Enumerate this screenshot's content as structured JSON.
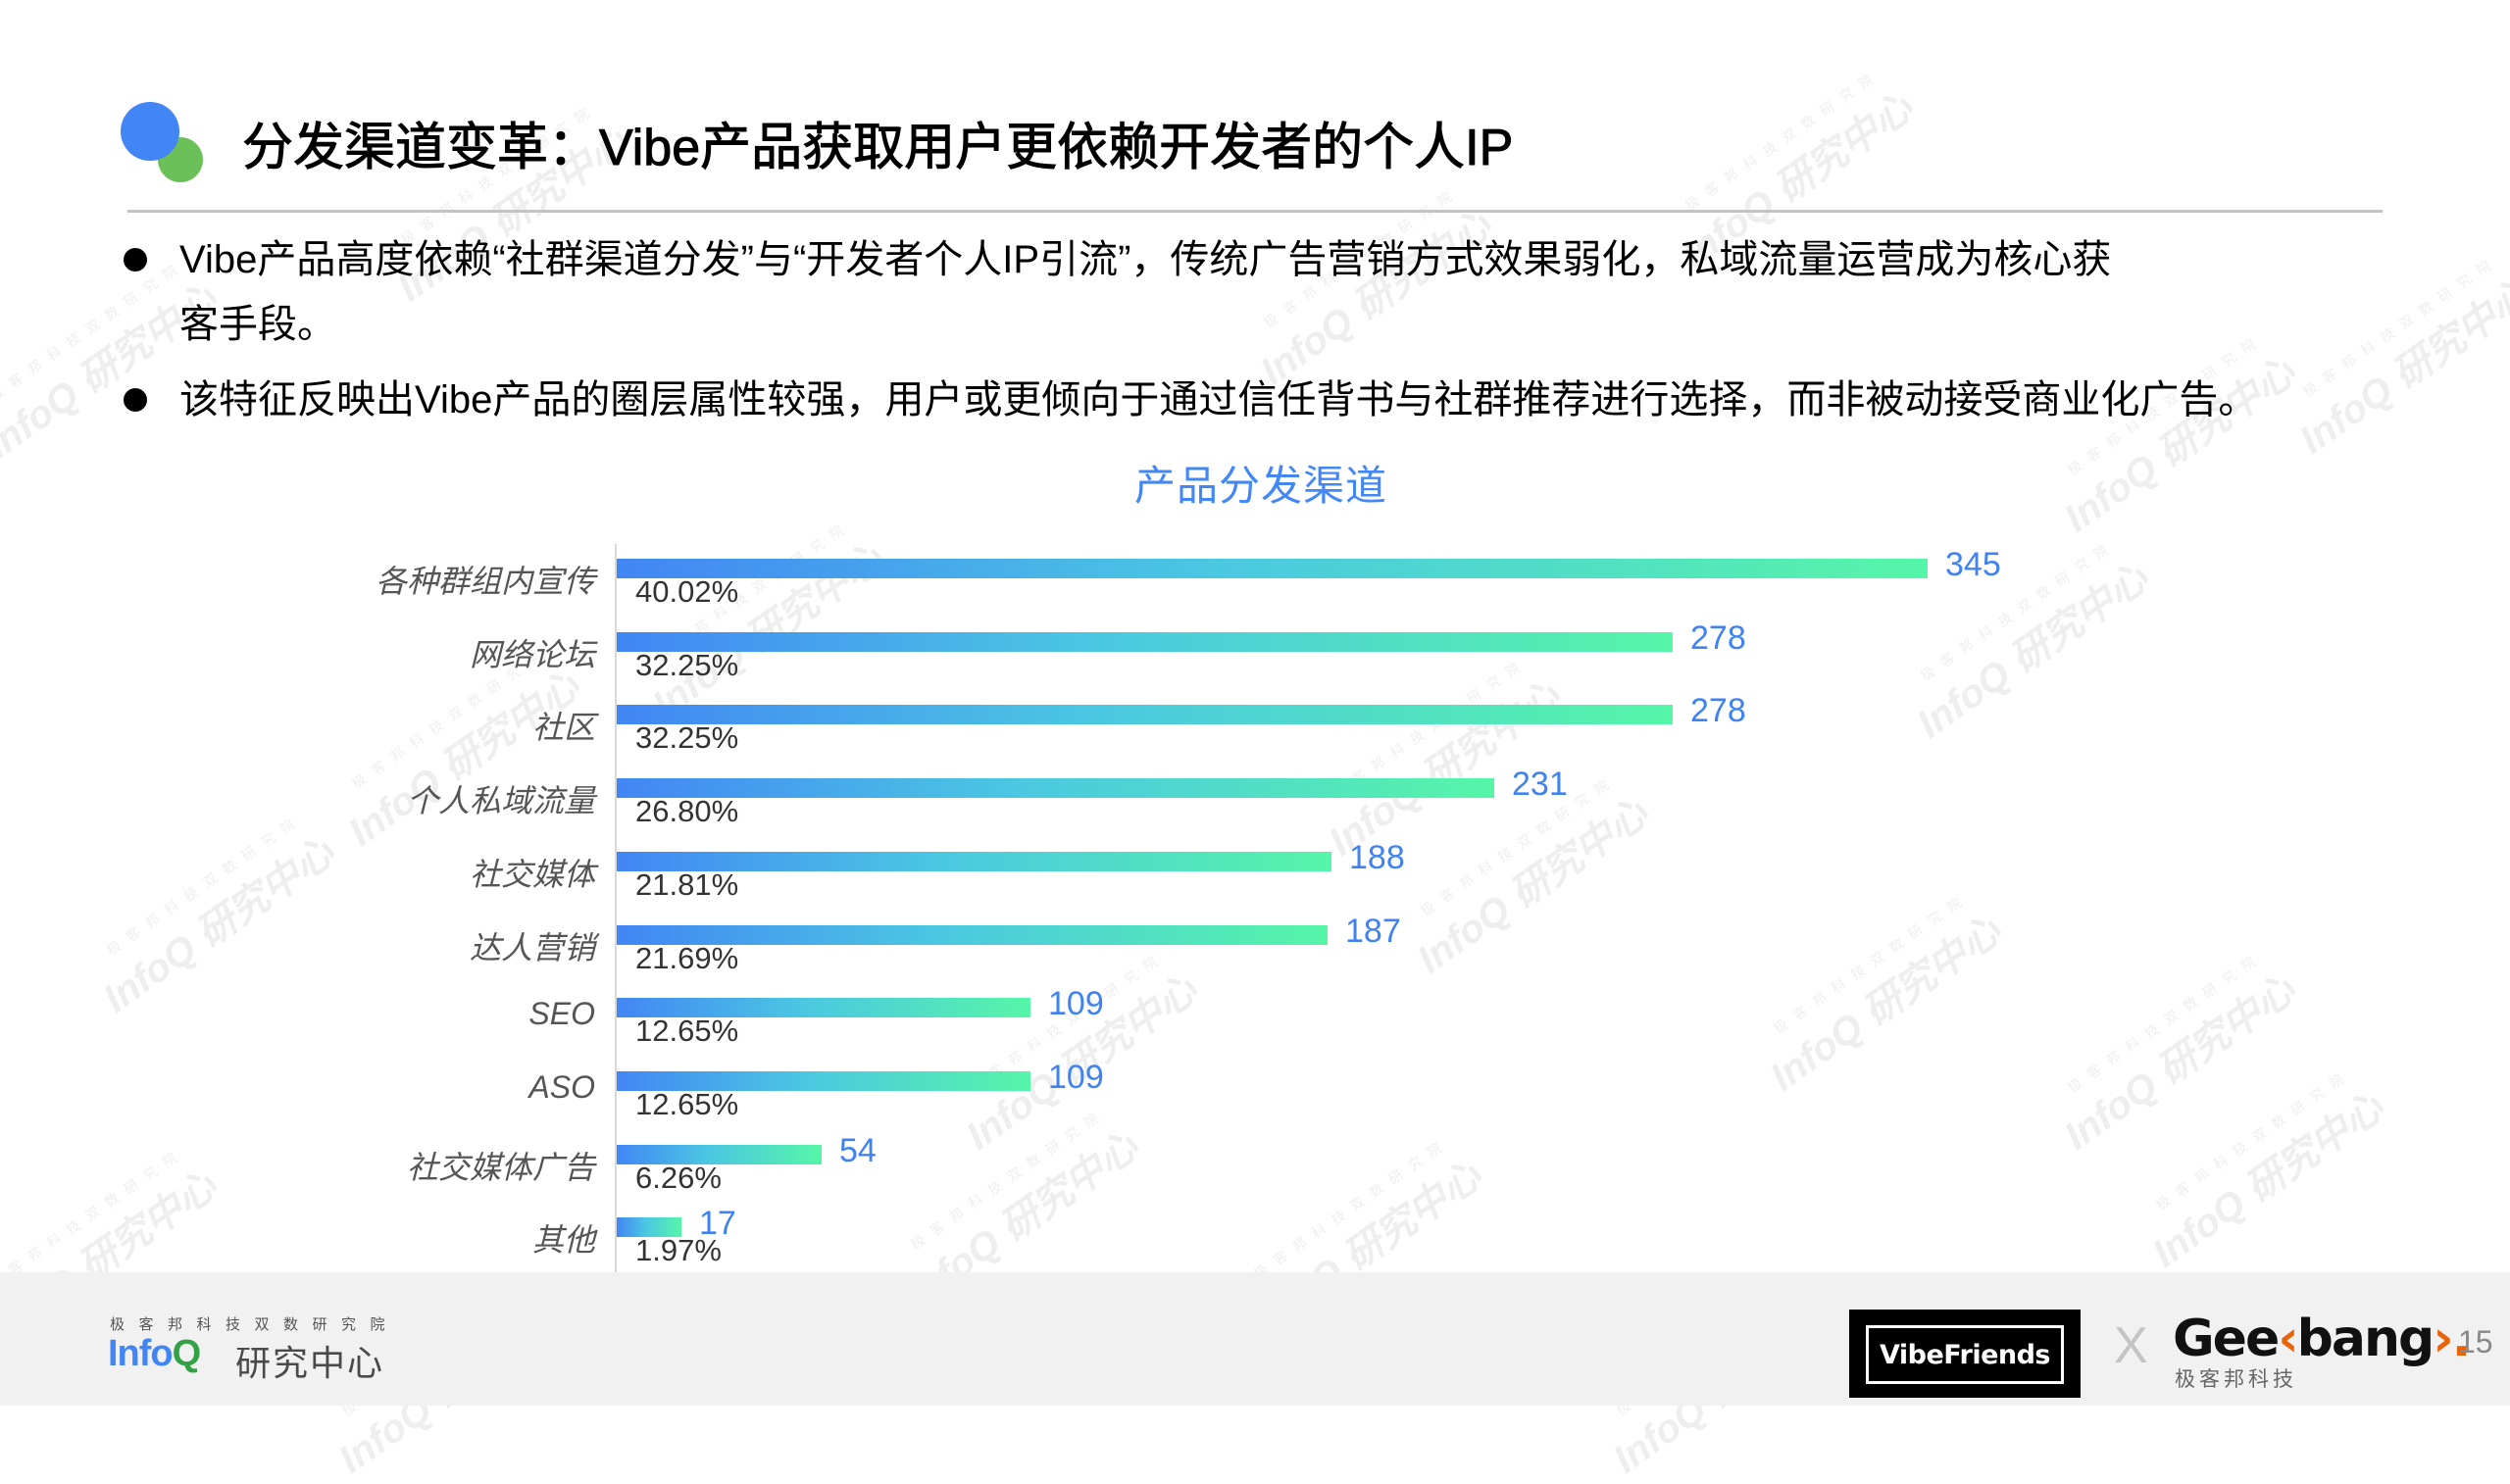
{
  "header": {
    "title": "分发渠道变革：Vibe产品获取用户更依赖开发者的个人IP"
  },
  "bullets": [
    {
      "line1": "Vibe产品高度依赖“社群渠道分发”与“开发者个人IP引流”，传统广告营销方式效果弱化，私域流量运营成为核心获",
      "line2": "客手段。"
    },
    {
      "line1": "该特征反映出Vibe产品的圈层属性较强，用户或更倾向于通过信任背书与社群推荐进行选择，而非被动接受商业化广告。"
    }
  ],
  "chart": {
    "title": "产品分发渠道",
    "bars": [
      {
        "label": "各种群组内宣传",
        "value": "345",
        "pct": "40.02%"
      },
      {
        "label": "网络论坛",
        "value": "278",
        "pct": "32.25%"
      },
      {
        "label": "社区",
        "value": "278",
        "pct": "32.25%"
      },
      {
        "label": "个人私域流量",
        "value": "231",
        "pct": "26.80%"
      },
      {
        "label": "社交媒体",
        "value": "188",
        "pct": "21.81%"
      },
      {
        "label": "达人营销",
        "value": "187",
        "pct": "21.69%"
      },
      {
        "label": "SEO",
        "value": "109",
        "pct": "12.65%"
      },
      {
        "label": "ASO",
        "value": "109",
        "pct": "12.65%"
      },
      {
        "label": "社交媒体广告",
        "value": "54",
        "pct": "6.26%"
      },
      {
        "label": "其他",
        "value": "17",
        "pct": "1.97%"
      }
    ]
  },
  "chart_data": {
    "type": "bar",
    "orientation": "horizontal",
    "title": "产品分发渠道",
    "categories": [
      "各种群组内宣传",
      "网络论坛",
      "社区",
      "个人私域流量",
      "社交媒体",
      "达人营销",
      "SEO",
      "ASO",
      "社交媒体广告",
      "其他"
    ],
    "values": [
      345,
      278,
      278,
      231,
      188,
      187,
      109,
      109,
      54,
      17
    ],
    "percentages": [
      "40.02%",
      "32.25%",
      "32.25%",
      "26.80%",
      "21.81%",
      "21.69%",
      "12.65%",
      "12.65%",
      "6.26%",
      "1.97%"
    ],
    "xlabel": "",
    "ylabel": "",
    "grid": false,
    "legend": "none",
    "bar_gradient": [
      "#4286f4",
      "#56f5a8"
    ],
    "value_label_color": "#3f82f0"
  },
  "footer": {
    "org_sub": "极客邦科技双数研究院",
    "infoq_main": "Info",
    "infoq_q": "Q",
    "infoq_center": "研究中心",
    "partner": "VibeFriends",
    "x_mark": "X",
    "geek_a": "Gee",
    "geek_k": "‹",
    "geek_b": "bang",
    "geek_arrow": "›.",
    "geek_sub": "极客邦科技",
    "page_number": "15"
  },
  "watermark": {
    "sub": "极客邦科技双数研究院",
    "main": "InfoQ 研究中心"
  },
  "colors": {
    "accent_blue": "#4285f4",
    "accent_green": "#6cc05a",
    "chart_title": "#4287f5"
  }
}
